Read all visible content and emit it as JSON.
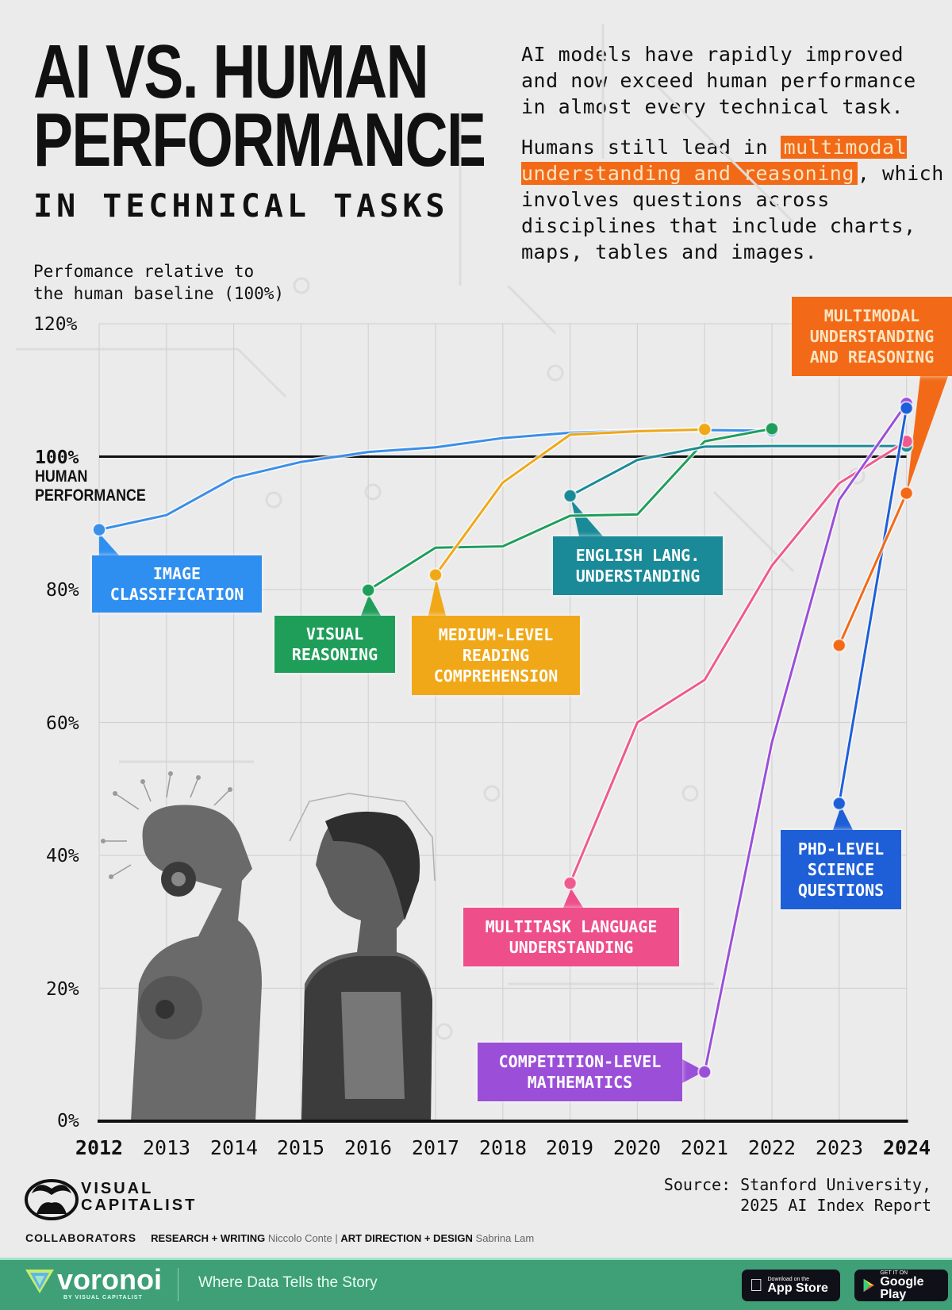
{
  "header": {
    "title_line1": "AI VS. HUMAN",
    "title_line2": "PERFORMANCE",
    "subtitle": "IN TECHNICAL TASKS",
    "intro_p1": "AI models have rapidly improved and now exceed human performance in almost every technical task.",
    "intro_p2_before": "Humans still lead in ",
    "intro_p2_highlight": "multimodal understanding and reasoning",
    "intro_p2_after": ", which involves questions across disciplines that include charts, maps, tables and images."
  },
  "axis": {
    "ylabel_line1": "Perfomance relative to",
    "ylabel_line2": "the human baseline (100%)",
    "yticks": [
      "120%",
      "80%",
      "60%",
      "40%",
      "20%",
      "0%"
    ],
    "human_pct": "100%",
    "human_line1": "HUMAN",
    "human_line2": "PERFORMANCE",
    "xticks": [
      "2012",
      "2013",
      "2014",
      "2015",
      "2016",
      "2017",
      "2018",
      "2019",
      "2020",
      "2021",
      "2022",
      "2023",
      "2024"
    ]
  },
  "labels": {
    "image_classification": "IMAGE CLASSIFICATION",
    "visual_reasoning": "VISUAL REASONING",
    "reading": "MEDIUM-LEVEL READING COMPREHENSION",
    "english": "ENGLISH LANG. UNDERSTANDING",
    "multimodal": "MULTIMODAL UNDERSTANDING AND REASONING",
    "phd": "PHD-LEVEL SCIENCE QUESTIONS",
    "multitask": "MULTITASK LANGUAGE UNDERSTANDING",
    "math": "COMPETITION-LEVEL MATHEMATICS"
  },
  "chart_data": {
    "type": "line",
    "title": "AI vs. Human Performance in Technical Tasks",
    "xlabel": "",
    "ylabel": "Perfomance relative to the human baseline (100%)",
    "ylim": [
      0,
      120
    ],
    "yticks": [
      0,
      20,
      40,
      60,
      80,
      100,
      120
    ],
    "x": [
      2012,
      2013,
      2014,
      2015,
      2016,
      2017,
      2018,
      2019,
      2020,
      2021,
      2022,
      2023,
      2024
    ],
    "grid": true,
    "reference_line": {
      "y": 100,
      "label": "100% Human Performance"
    },
    "series": [
      {
        "name": "Image Classification",
        "color": "#3a8fe8",
        "x": [
          2012,
          2013,
          2014,
          2015,
          2016,
          2017,
          2018,
          2019,
          2020,
          2021,
          2022
        ],
        "values": [
          89,
          91.2,
          96.8,
          99.2,
          100.7,
          101.4,
          102.8,
          103.6,
          103.9,
          104,
          103.9
        ]
      },
      {
        "name": "Visual Reasoning",
        "color": "#1f9e5a",
        "x": [
          2016,
          2017,
          2018,
          2019,
          2020,
          2021,
          2022
        ],
        "values": [
          79.9,
          86.3,
          86.5,
          91.1,
          91.3,
          102.3,
          104.2
        ]
      },
      {
        "name": "Medium-Level Reading Comprehension",
        "color": "#f0a818",
        "x": [
          2017,
          2018,
          2019,
          2020,
          2021
        ],
        "values": [
          82.2,
          96.1,
          103.3,
          103.8,
          104.1
        ]
      },
      {
        "name": "English Lang. Understanding",
        "color": "#1a8a98",
        "x": [
          2019,
          2020,
          2021,
          2022,
          2023,
          2024
        ],
        "values": [
          94.1,
          99.5,
          101.5,
          101.6,
          101.6,
          101.6
        ]
      },
      {
        "name": "Multitask Language Understanding",
        "color": "#ee5a8e",
        "x": [
          2019,
          2020,
          2021,
          2022,
          2023,
          2024
        ],
        "values": [
          35.8,
          60,
          66.4,
          83.6,
          96,
          102.3
        ]
      },
      {
        "name": "Competition-Level Mathematics",
        "color": "#9b4fd8",
        "x": [
          2021,
          2022,
          2023,
          2024
        ],
        "values": [
          7.4,
          57,
          93.5,
          108
        ]
      },
      {
        "name": "PhD-Level Science Questions",
        "color": "#1e5fd8",
        "x": [
          2023,
          2024
        ],
        "values": [
          47.8,
          107.3
        ]
      },
      {
        "name": "Multimodal Understanding and Reasoning",
        "color": "#f26a17",
        "x": [
          2023,
          2024
        ],
        "values": [
          71.6,
          94.5
        ]
      }
    ]
  },
  "footer": {
    "source_line1": "Source: Stanford University,",
    "source_line2": "2025 AI Index Report",
    "brand_line1": "VISUAL",
    "brand_line2": "CAPITALIST",
    "collab_label": "COLLABORATORS",
    "research_label": "RESEARCH + WRITING",
    "research_name": "Niccolo Conte",
    "sep": "|",
    "design_label": "ART DIRECTION + DESIGN",
    "design_name": "Sabrina Lam",
    "voronoi": "voronoi",
    "voronoi_sub": "BY VISUAL CAPITALIST",
    "tagline": "Where Data Tells the Story",
    "appstore_small": "Download on the",
    "appstore_main": "App Store",
    "google_small": "GET IT ON",
    "google_main": "Google Play"
  }
}
